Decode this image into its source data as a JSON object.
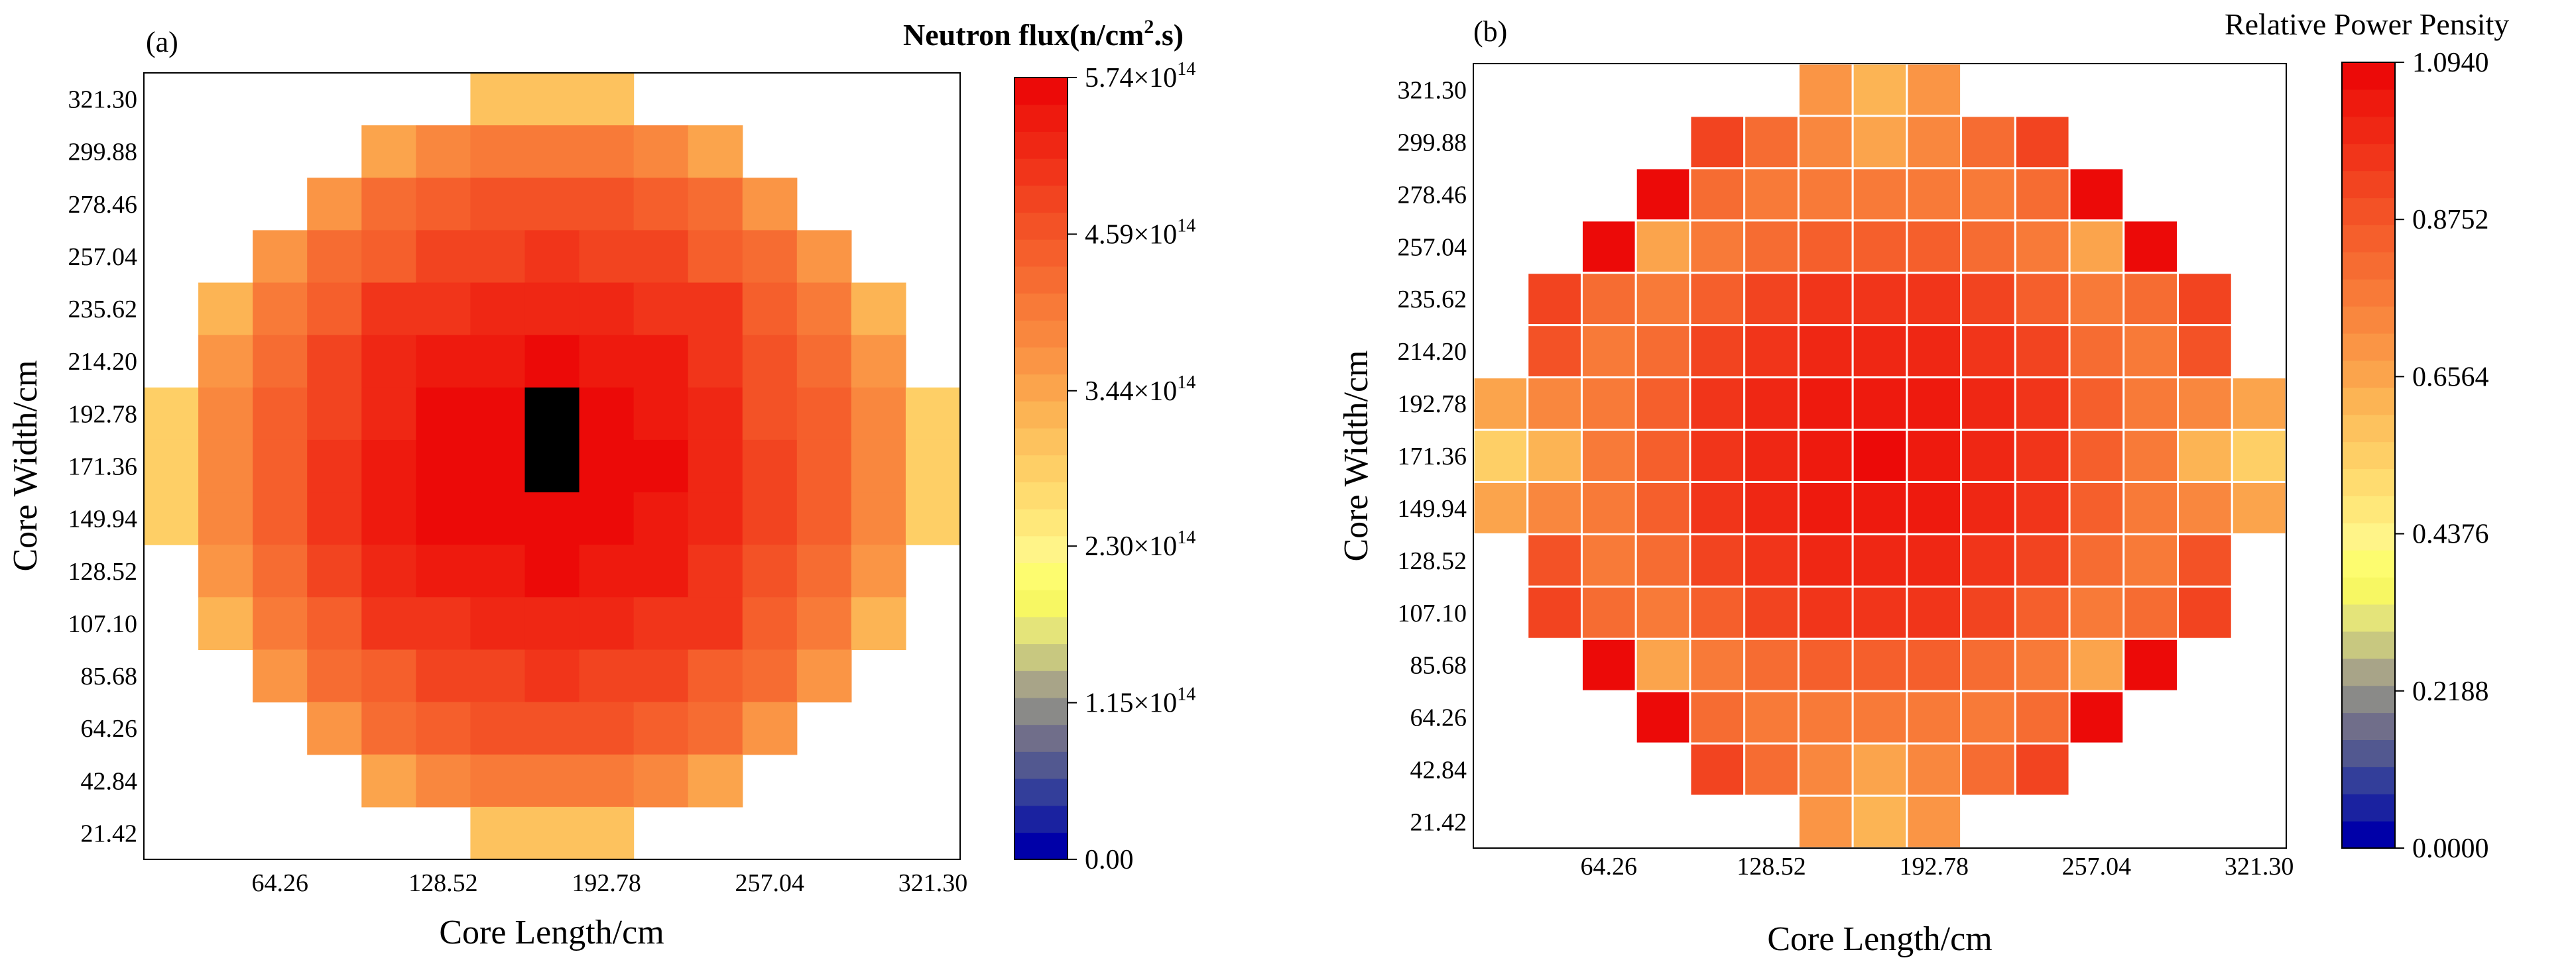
{
  "palette": [
    "#0000a8",
    "#1a22a0",
    "#333e9a",
    "#525890",
    "#706e8a",
    "#8a8a88",
    "#a8a488",
    "#c8c880",
    "#e4e47a",
    "#f7f763",
    "#fdfc6f",
    "#fff488",
    "#ffe87a",
    "#ffdc70",
    "#fecf66",
    "#fdc25e",
    "#fcb454",
    "#fba44c",
    "#fa9545",
    "#f9873e",
    "#f87a38",
    "#f66c32",
    "#f55f2c",
    "#f35226",
    "#f24420",
    "#f1351a",
    "#ef2714",
    "#ee1a0e",
    "#ec0a08"
  ],
  "chart_data": [
    {
      "type": "heatmap",
      "panel_label": "(a)",
      "title": "Neutron flux(n/cm",
      "title_sup": "2",
      "title_suffix": ".s)",
      "xlabel": "Core Length/cm",
      "ylabel": "Core Width/cm",
      "x_ticks": [
        "64.26",
        "128.52",
        "192.78",
        "257.04",
        "321.30"
      ],
      "y_ticks": [
        "321.30",
        "299.88",
        "278.46",
        "257.04",
        "235.62",
        "214.20",
        "192.78",
        "171.36",
        "149.94",
        "128.52",
        "107.10",
        "85.68",
        "64.26",
        "42.84",
        "21.42"
      ],
      "colorbar": {
        "range": [
          0,
          574000000000000.0
        ],
        "ticks": [
          {
            "value": 0,
            "mantissa": "0.00",
            "exp": ""
          },
          {
            "value": 115000000000000.0,
            "mantissa": "1.15×10",
            "exp": "14"
          },
          {
            "value": 230000000000000.0,
            "mantissa": "2.30×10",
            "exp": "14"
          },
          {
            "value": 344000000000000.0,
            "mantissa": "3.44×10",
            "exp": "14"
          },
          {
            "value": 459000000000000.0,
            "mantissa": "4.59×10",
            "exp": "14"
          },
          {
            "value": 574000000000000.0,
            "mantissa": "5.74×10",
            "exp": "14"
          }
        ]
      },
      "grid_lines": false,
      "values": [
        [
          null,
          null,
          null,
          null,
          null,
          null,
          15,
          15,
          15,
          null,
          null,
          null,
          null,
          null,
          null
        ],
        [
          null,
          null,
          null,
          null,
          17,
          19,
          20,
          20,
          20,
          19,
          17,
          null,
          null,
          null,
          null
        ],
        [
          null,
          null,
          null,
          18,
          21,
          22,
          23,
          23,
          23,
          22,
          21,
          18,
          null,
          null,
          null
        ],
        [
          null,
          null,
          18,
          21,
          22,
          24,
          24,
          25,
          24,
          24,
          22,
          21,
          18,
          null,
          null
        ],
        [
          null,
          16,
          20,
          22,
          25,
          25,
          26,
          26,
          26,
          25,
          25,
          22,
          20,
          16,
          null
        ],
        [
          null,
          18,
          21,
          24,
          26,
          27,
          27,
          28,
          27,
          27,
          25,
          23,
          21,
          18,
          null
        ],
        [
          14,
          19,
          22,
          24,
          26,
          28,
          28,
          29,
          28,
          27,
          26,
          23,
          22,
          19,
          14
        ],
        [
          14,
          19,
          22,
          25,
          27,
          28,
          28,
          29,
          28,
          28,
          26,
          24,
          22,
          19,
          14
        ],
        [
          14,
          19,
          22,
          25,
          27,
          28,
          28,
          28,
          28,
          27,
          26,
          24,
          22,
          19,
          14
        ],
        [
          null,
          18,
          21,
          24,
          26,
          27,
          27,
          28,
          27,
          27,
          25,
          23,
          21,
          18,
          null
        ],
        [
          null,
          16,
          20,
          22,
          25,
          25,
          26,
          26,
          26,
          25,
          25,
          22,
          20,
          16,
          null
        ],
        [
          null,
          null,
          18,
          21,
          22,
          24,
          24,
          25,
          24,
          24,
          22,
          21,
          18,
          null,
          null
        ],
        [
          null,
          null,
          null,
          18,
          21,
          22,
          23,
          23,
          23,
          22,
          21,
          18,
          null,
          null,
          null
        ],
        [
          null,
          null,
          null,
          null,
          17,
          19,
          20,
          20,
          20,
          19,
          17,
          null,
          null,
          null,
          null
        ],
        [
          null,
          null,
          null,
          null,
          null,
          null,
          15,
          15,
          15,
          null,
          null,
          null,
          null,
          null,
          null
        ]
      ]
    },
    {
      "type": "heatmap",
      "panel_label": "(b)",
      "title": "Relative Power Pensity",
      "xlabel": "Core Length/cm",
      "ylabel": "Core Width/cm",
      "x_ticks": [
        "64.26",
        "128.52",
        "192.78",
        "257.04",
        "321.30"
      ],
      "y_ticks": [
        "321.30",
        "299.88",
        "278.46",
        "257.04",
        "235.62",
        "214.20",
        "192.78",
        "171.36",
        "149.94",
        "128.52",
        "107.10",
        "85.68",
        "64.26",
        "42.84",
        "21.42"
      ],
      "colorbar": {
        "range": [
          0,
          1.094
        ],
        "ticks": [
          {
            "value": 0,
            "mantissa": "0.0000",
            "exp": ""
          },
          {
            "value": 0.2188,
            "mantissa": "0.2188",
            "exp": ""
          },
          {
            "value": 0.4376,
            "mantissa": "0.4376",
            "exp": ""
          },
          {
            "value": 0.6564,
            "mantissa": "0.6564",
            "exp": ""
          },
          {
            "value": 0.8752,
            "mantissa": "0.8752",
            "exp": ""
          },
          {
            "value": 1.094,
            "mantissa": "1.0940",
            "exp": ""
          }
        ]
      },
      "grid_lines": true,
      "values": [
        [
          null,
          null,
          null,
          null,
          null,
          null,
          18,
          16,
          18,
          null,
          null,
          null,
          null,
          null,
          null
        ],
        [
          null,
          null,
          null,
          null,
          24,
          21,
          19,
          17,
          19,
          21,
          24,
          null,
          null,
          null,
          null
        ],
        [
          null,
          null,
          null,
          28,
          21,
          20,
          20,
          20,
          20,
          20,
          21,
          28,
          null,
          null,
          null
        ],
        [
          null,
          null,
          28,
          17,
          20,
          21,
          22,
          22,
          22,
          21,
          20,
          17,
          28,
          null,
          null
        ],
        [
          null,
          24,
          21,
          20,
          22,
          24,
          25,
          25,
          25,
          24,
          22,
          20,
          21,
          24,
          null
        ],
        [
          null,
          23,
          20,
          21,
          24,
          25,
          26,
          26,
          26,
          25,
          24,
          21,
          20,
          23,
          null
        ],
        [
          17,
          19,
          20,
          22,
          25,
          26,
          27,
          27,
          27,
          26,
          25,
          22,
          20,
          19,
          17
        ],
        [
          14,
          16,
          20,
          22,
          25,
          26,
          27,
          28,
          27,
          26,
          25,
          22,
          20,
          16,
          14
        ],
        [
          17,
          19,
          20,
          22,
          25,
          26,
          27,
          27,
          27,
          26,
          25,
          22,
          20,
          19,
          17
        ],
        [
          null,
          23,
          20,
          21,
          24,
          25,
          26,
          26,
          26,
          25,
          24,
          21,
          20,
          23,
          null
        ],
        [
          null,
          24,
          21,
          20,
          22,
          24,
          25,
          25,
          25,
          24,
          22,
          20,
          21,
          24,
          null
        ],
        [
          null,
          null,
          28,
          17,
          20,
          21,
          22,
          22,
          22,
          21,
          20,
          17,
          28,
          null,
          null
        ],
        [
          null,
          null,
          null,
          28,
          21,
          20,
          20,
          20,
          20,
          20,
          21,
          28,
          null,
          null,
          null
        ],
        [
          null,
          null,
          null,
          null,
          24,
          21,
          19,
          17,
          19,
          21,
          24,
          null,
          null,
          null,
          null
        ],
        [
          null,
          null,
          null,
          null,
          null,
          null,
          18,
          16,
          18,
          null,
          null,
          null,
          null,
          null,
          null
        ]
      ]
    }
  ]
}
